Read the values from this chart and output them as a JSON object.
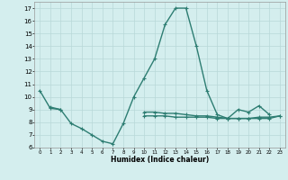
{
  "x": [
    0,
    1,
    2,
    3,
    4,
    5,
    6,
    7,
    8,
    9,
    10,
    11,
    12,
    13,
    14,
    15,
    16,
    17,
    18,
    19,
    20,
    21,
    22,
    23
  ],
  "line1": [
    10.5,
    9.1,
    9.0,
    7.9,
    7.5,
    7.0,
    6.5,
    6.3,
    7.9,
    10.0,
    11.5,
    13.0,
    15.7,
    17.0,
    17.0,
    14.0,
    10.5,
    8.6,
    8.3,
    9.0,
    8.8,
    9.3,
    8.6,
    null
  ],
  "line2": [
    null,
    9.2,
    9.0,
    null,
    null,
    null,
    null,
    null,
    null,
    null,
    8.8,
    8.8,
    8.7,
    8.7,
    8.6,
    8.5,
    8.5,
    8.4,
    8.3,
    8.3,
    8.3,
    8.4,
    8.4,
    8.5
  ],
  "line3": [
    null,
    null,
    null,
    null,
    null,
    null,
    null,
    null,
    null,
    null,
    8.5,
    8.5,
    8.5,
    8.4,
    8.4,
    8.4,
    8.4,
    8.3,
    8.3,
    8.3,
    8.3,
    8.3,
    8.3,
    8.5
  ],
  "line_color": "#2d7d72",
  "bg_color": "#d4eeee",
  "grid_color": "#b8d8d8",
  "xlim": [
    -0.5,
    23.5
  ],
  "ylim": [
    6,
    17.5
  ],
  "yticks": [
    6,
    7,
    8,
    9,
    10,
    11,
    12,
    13,
    14,
    15,
    16,
    17
  ],
  "xticks": [
    0,
    1,
    2,
    3,
    4,
    5,
    6,
    7,
    8,
    9,
    10,
    11,
    12,
    13,
    14,
    15,
    16,
    17,
    18,
    19,
    20,
    21,
    22,
    23
  ],
  "xlabel": "Humidex (Indice chaleur)",
  "marker": "+",
  "markersize": 3,
  "linewidth": 1.0
}
